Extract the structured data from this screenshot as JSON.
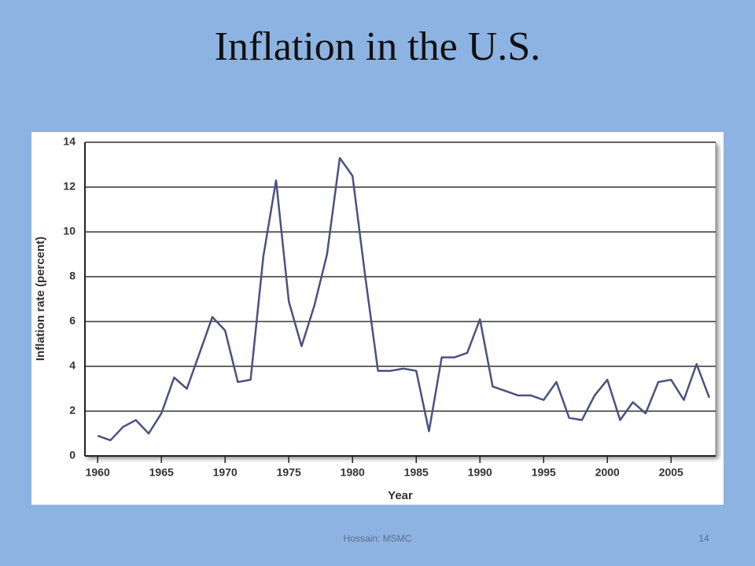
{
  "title": "Inflation in the U.S.",
  "footer": "Hossain: MSMC",
  "page_number": "14",
  "chart_data": {
    "type": "line",
    "x_label": "Year",
    "y_label": "Inflation rate (percent)",
    "x": [
      1960,
      1961,
      1962,
      1963,
      1964,
      1965,
      1966,
      1967,
      1968,
      1969,
      1970,
      1971,
      1972,
      1973,
      1974,
      1975,
      1976,
      1977,
      1978,
      1979,
      1980,
      1981,
      1982,
      1983,
      1984,
      1985,
      1986,
      1987,
      1988,
      1989,
      1990,
      1991,
      1992,
      1993,
      1994,
      1995,
      1996,
      1997,
      1998,
      1999,
      2000,
      2001,
      2002,
      2003,
      2004,
      2005,
      2006,
      2007,
      2008
    ],
    "values": [
      0.9,
      0.7,
      1.3,
      1.6,
      1.0,
      1.9,
      3.5,
      3.0,
      4.6,
      6.2,
      5.6,
      3.3,
      3.4,
      8.9,
      12.3,
      6.9,
      4.9,
      6.7,
      9.0,
      13.3,
      12.5,
      8.0,
      3.8,
      3.8,
      3.9,
      3.8,
      1.1,
      4.4,
      4.4,
      4.6,
      6.1,
      3.1,
      2.9,
      2.7,
      2.7,
      2.5,
      3.3,
      1.7,
      1.6,
      2.7,
      3.4,
      1.6,
      2.4,
      1.9,
      3.3,
      3.4,
      2.5,
      4.1,
      2.6
    ],
    "color": "#4b5180",
    "xlim": [
      1959,
      2008.5
    ],
    "xticks": [
      1960,
      1965,
      1970,
      1975,
      1980,
      1985,
      1990,
      1995,
      2000,
      2005
    ],
    "ylim": [
      0,
      14
    ],
    "yticks": [
      0,
      2,
      4,
      6,
      8,
      10,
      12,
      14
    ],
    "grid": true
  }
}
